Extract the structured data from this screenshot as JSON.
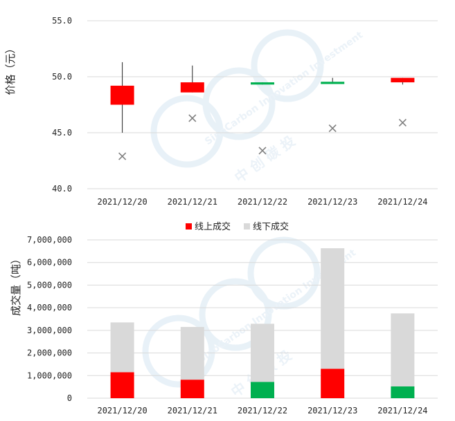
{
  "watermark": {
    "brand_text": "SinoCarbon Innovation Investment",
    "cn_text": "中  创  碳  投",
    "color": "#cfe0ee"
  },
  "colors": {
    "up": "#ff0000",
    "down": "#00b050",
    "offline": "#d9d9d9",
    "mark": "#7f7f7f",
    "grid": "#d9d9d9"
  },
  "chart_data": [
    {
      "type": "candlestick",
      "title": "",
      "ylabel": "价格（元）",
      "ylim": [
        40,
        55
      ],
      "yticks": [
        "40.0",
        "45.0",
        "50.0",
        "55.0"
      ],
      "categories": [
        "2021/12/20",
        "2021/12/21",
        "2021/12/22",
        "2021/12/23",
        "2021/12/24"
      ],
      "open": [
        47.5,
        48.6,
        49.5,
        49.55,
        49.5
      ],
      "close": [
        49.2,
        49.5,
        49.3,
        49.35,
        49.9
      ],
      "high": [
        51.3,
        51.0,
        49.5,
        49.9,
        49.9
      ],
      "low": [
        45.0,
        48.6,
        49.3,
        49.35,
        49.3
      ],
      "x_marker": [
        42.9,
        46.3,
        43.4,
        45.4,
        45.9
      ],
      "grid": true
    },
    {
      "type": "bar",
      "stacked": true,
      "title": "",
      "ylabel": "成交量（吨）",
      "ylim": [
        0,
        7000000
      ],
      "yticks": [
        "0",
        "1,000,000",
        "2,000,000",
        "3,000,000",
        "4,000,000",
        "5,000,000",
        "6,000,000",
        "7,000,000"
      ],
      "legend_position": "top",
      "categories": [
        "2021/12/20",
        "2021/12/21",
        "2021/12/22",
        "2021/12/23",
        "2021/12/24"
      ],
      "series": [
        {
          "name": "线上成交",
          "values": [
            1150000,
            820000,
            720000,
            1300000,
            520000
          ],
          "bar_colors": [
            "#ff0000",
            "#ff0000",
            "#00b050",
            "#ff0000",
            "#00b050"
          ]
        },
        {
          "name": "线下成交",
          "values": [
            2200000,
            2330000,
            2570000,
            5330000,
            3230000
          ],
          "bar_colors": [
            "#d9d9d9",
            "#d9d9d9",
            "#d9d9d9",
            "#d9d9d9",
            "#d9d9d9"
          ]
        }
      ],
      "legend_swatches": [
        "#ff0000",
        "#d9d9d9"
      ],
      "grid": true
    }
  ]
}
